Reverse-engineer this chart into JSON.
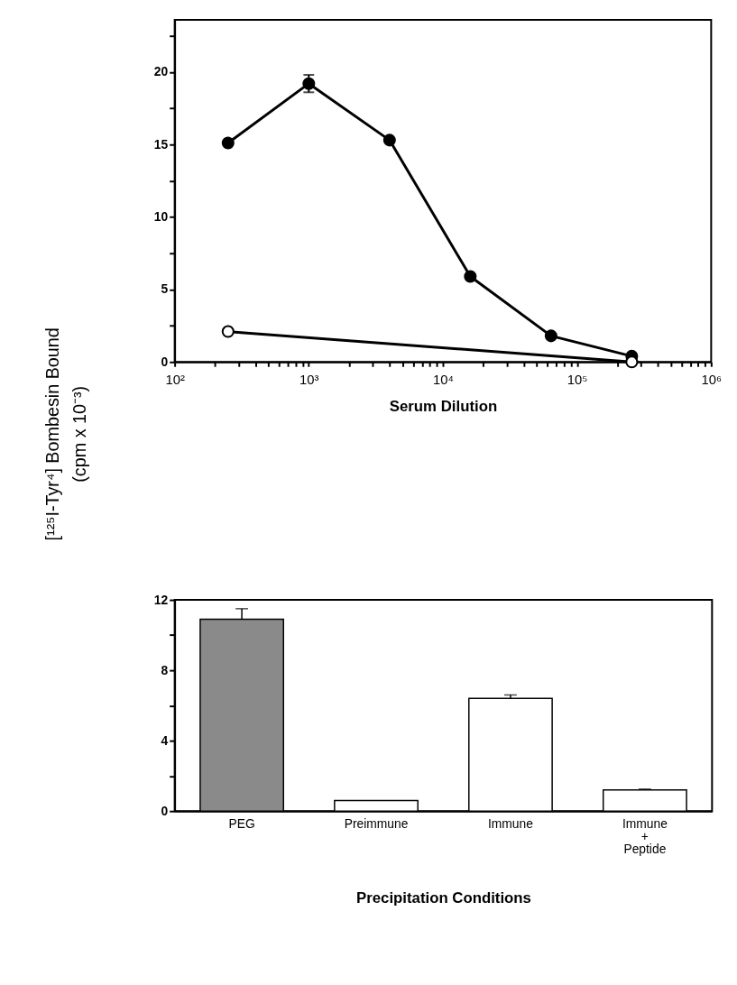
{
  "chart_data": [
    {
      "type": "line",
      "xlabel": "Serum Dilution",
      "ylabel": "[¹²⁵I-Tyr⁴] Bombesin Bound\n(cpm x 10⁻³)",
      "log": "x",
      "marker": "circle",
      "line_style": "solid",
      "grid": false,
      "xlim": [
        100,
        1000000
      ],
      "ylim": [
        0,
        23.6
      ],
      "xticks": [
        {
          "value": 100,
          "label": "10²"
        },
        {
          "value": 200,
          "label": null
        },
        {
          "value": 300,
          "label": null
        },
        {
          "value": 400,
          "label": null
        },
        {
          "value": 500,
          "label": null
        },
        {
          "value": 600,
          "label": null
        },
        {
          "value": 700,
          "label": null
        },
        {
          "value": 800,
          "label": null
        },
        {
          "value": 900,
          "label": null
        },
        {
          "value": 1000,
          "label": "10³"
        },
        {
          "value": 2000,
          "label": null
        },
        {
          "value": 3000,
          "label": null
        },
        {
          "value": 4000,
          "label": null
        },
        {
          "value": 5000,
          "label": null
        },
        {
          "value": 6000,
          "label": null
        },
        {
          "value": 7000,
          "label": null
        },
        {
          "value": 8000,
          "label": null
        },
        {
          "value": 9000,
          "label": null
        },
        {
          "value": 10000,
          "label": "10⁴"
        },
        {
          "value": 20000,
          "label": null
        },
        {
          "value": 30000,
          "label": null
        },
        {
          "value": 40000,
          "label": null
        },
        {
          "value": 50000,
          "label": null
        },
        {
          "value": 60000,
          "label": null
        },
        {
          "value": 70000,
          "label": null
        },
        {
          "value": 80000,
          "label": null
        },
        {
          "value": 90000,
          "label": null
        },
        {
          "value": 100000,
          "label": "10⁵"
        },
        {
          "value": 200000,
          "label": null
        },
        {
          "value": 300000,
          "label": null
        },
        {
          "value": 400000,
          "label": null
        },
        {
          "value": 500000,
          "label": null
        },
        {
          "value": 600000,
          "label": null
        },
        {
          "value": 700000,
          "label": null
        },
        {
          "value": 800000,
          "label": null
        },
        {
          "value": 900000,
          "label": null
        },
        {
          "value": 1000000,
          "label": "10⁶"
        }
      ],
      "yticks": [
        0,
        {
          "value": 2.5,
          "label": null
        },
        5,
        {
          "value": 7.5,
          "label": null
        },
        10,
        {
          "value": 12.5,
          "label": null
        },
        15,
        {
          "value": 17.5,
          "label": null
        },
        20,
        {
          "value": 22.5,
          "label": null
        }
      ],
      "series": [
        {
          "color": "#000000",
          "x": [
            250,
            1000,
            4000,
            16000,
            64000,
            256000
          ],
          "values": [
            15.1,
            19.2,
            15.3,
            5.9,
            1.8,
            0.4
          ],
          "errors": [
            null,
            0.6,
            null,
            null,
            null,
            null
          ]
        },
        {
          "color": "#ffffff",
          "x": [
            250,
            256000
          ],
          "values": [
            2.1,
            0
          ]
        }
      ]
    },
    {
      "type": "bar",
      "xlabel": "Precipitation Conditions",
      "grid": false,
      "categories": [
        "PEG",
        "Preimmune",
        "Immune",
        "Immune\n+\nPeptide"
      ],
      "values": [
        10.9,
        0.6,
        6.4,
        1.2
      ],
      "colors": [
        "#8a8a8a",
        "#ffffff",
        "#ffffff",
        "#ffffff"
      ],
      "errors": [
        [
          10.9,
          11.5
        ],
        null,
        [
          6.4,
          6.6
        ],
        [
          1.2,
          1.25
        ]
      ],
      "ylim": [
        0,
        12
      ],
      "yticks": [
        0,
        {
          "value": 2,
          "label": null
        },
        4,
        {
          "value": 6,
          "label": null
        },
        8,
        {
          "value": 10,
          "label": null
        },
        12
      ]
    }
  ]
}
